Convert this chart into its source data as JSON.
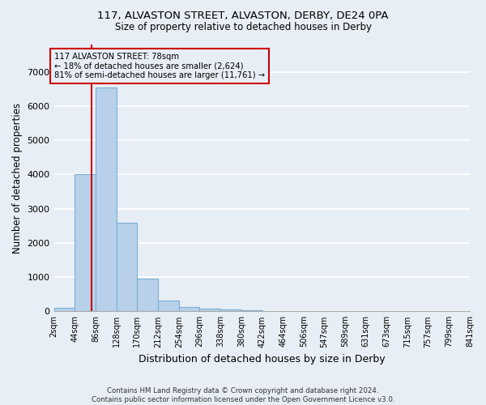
{
  "title1": "117, ALVASTON STREET, ALVASTON, DERBY, DE24 0PA",
  "title2": "Size of property relative to detached houses in Derby",
  "xlabel": "Distribution of detached houses by size in Derby",
  "ylabel": "Number of detached properties",
  "footnote": "Contains HM Land Registry data © Crown copyright and database right 2024.\nContains public sector information licensed under the Open Government Licence v3.0.",
  "bin_edges": [
    2,
    44,
    86,
    128,
    170,
    212,
    254,
    296,
    338,
    380,
    422,
    464,
    506,
    547,
    589,
    631,
    673,
    715,
    757,
    799,
    841
  ],
  "bar_heights": [
    100,
    4000,
    6550,
    2600,
    950,
    320,
    130,
    80,
    50,
    30,
    18,
    12,
    8,
    6,
    5,
    4,
    3,
    3,
    2,
    2
  ],
  "bar_color": "#b8d0ea",
  "bar_edge_color": "#7aafd4",
  "property_size": 78,
  "vline_color": "#cc0000",
  "annotation_line1": "117 ALVASTON STREET: 78sqm",
  "annotation_line2": "← 18% of detached houses are smaller (2,624)",
  "annotation_line3": "81% of semi-detached houses are larger (11,761) →",
  "ylim": [
    0,
    7800
  ],
  "yticks": [
    0,
    1000,
    2000,
    3000,
    4000,
    5000,
    6000,
    7000
  ],
  "background_color": "#e8eef5",
  "grid_color": "#ffffff",
  "figsize": [
    6.0,
    5.0
  ],
  "dpi": 100
}
